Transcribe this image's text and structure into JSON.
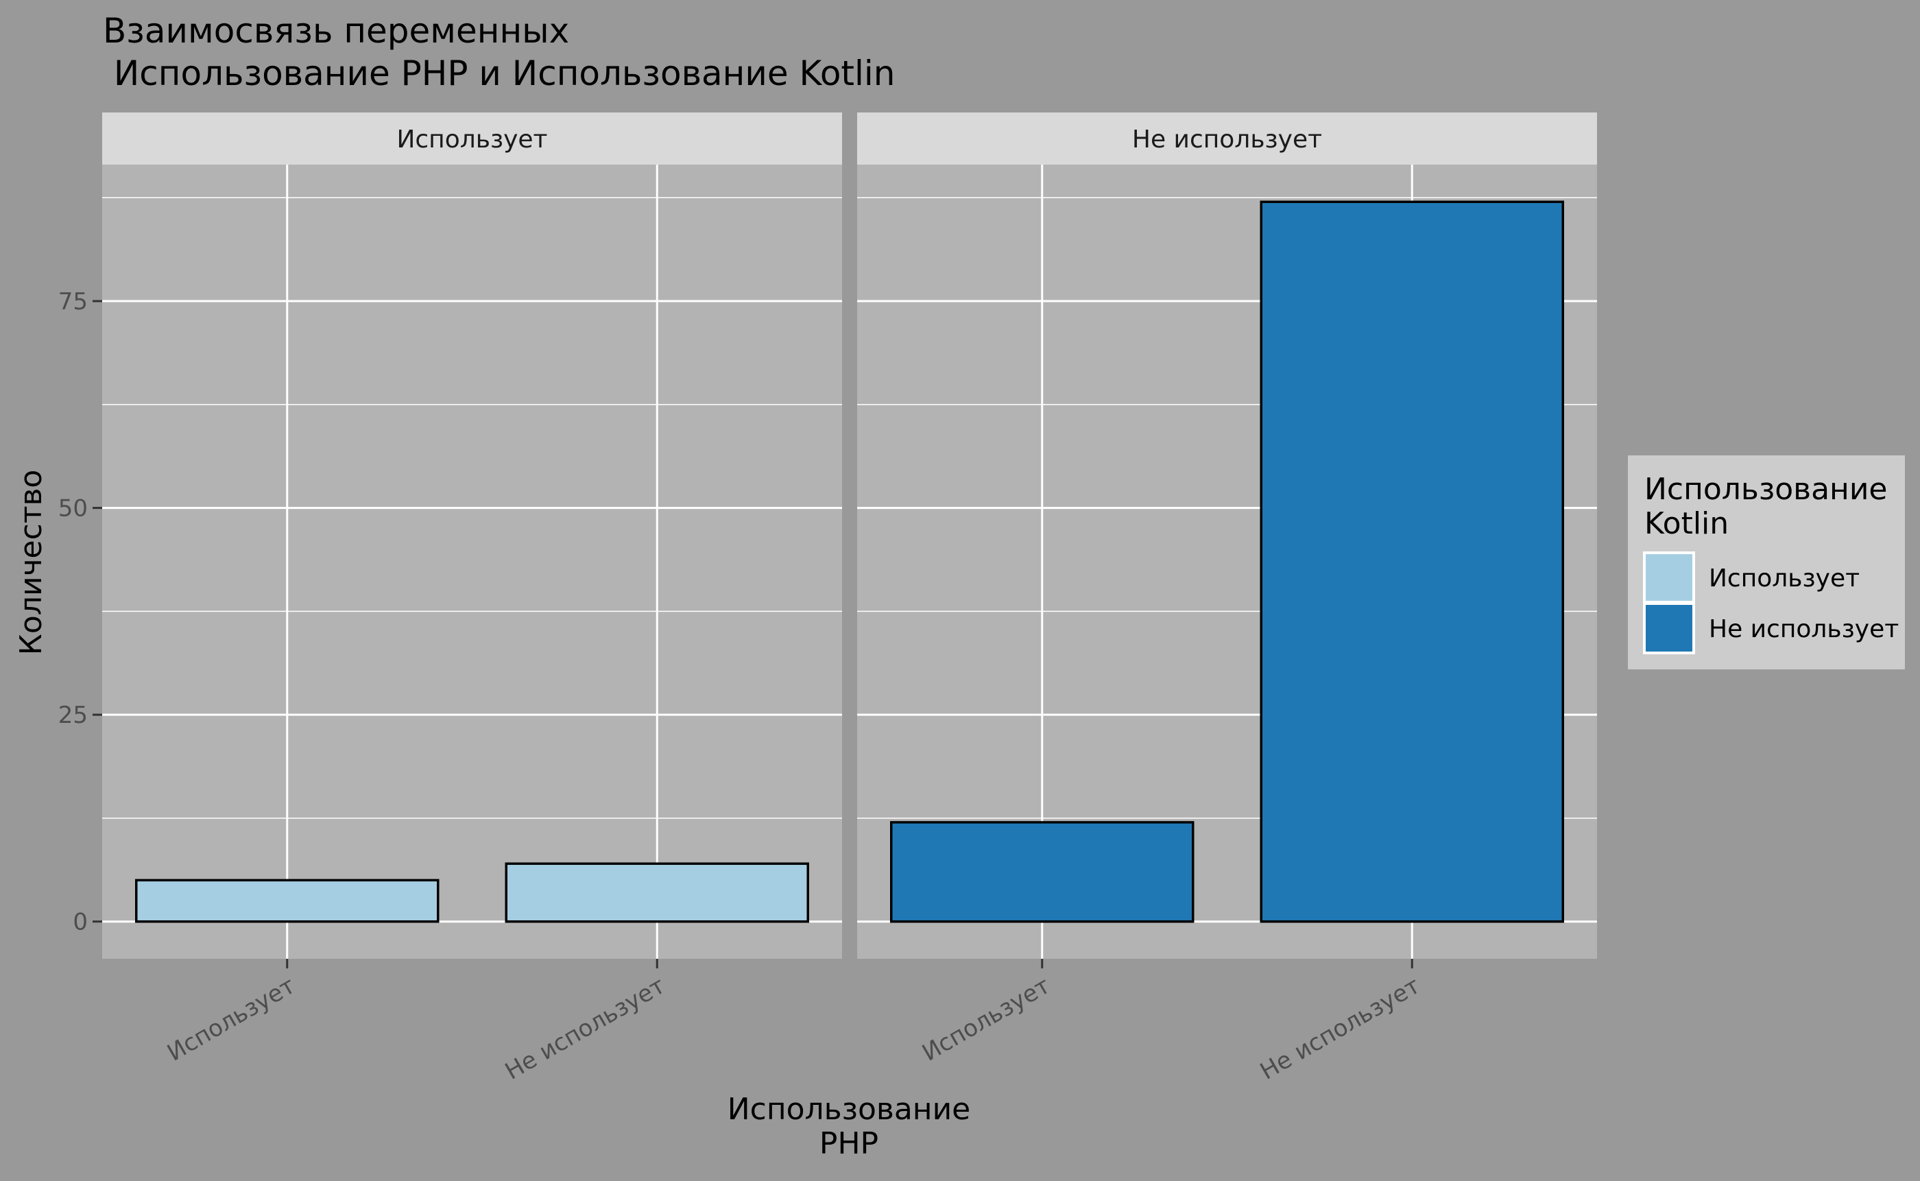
{
  "title_line1": "Взаимосвязь переменных",
  "title_line2": " Использование PHP и Использование Kotlin",
  "colors": {
    "background": "#999999",
    "panel": "#b3b3b3",
    "strip": "#d9d9d9",
    "grid": "#ffffff",
    "bar_outline": "#000000",
    "legend_bg": "#cccccc"
  },
  "chart_data": {
    "type": "bar",
    "facet_variable": "Использование Kotlin",
    "facets": [
      {
        "label": "Использует",
        "color": "#a6cee3",
        "categories": [
          "Использует",
          "Не использует"
        ],
        "values": [
          5,
          7
        ]
      },
      {
        "label": "Не использует",
        "color": "#1f78b4",
        "categories": [
          "Использует",
          "Не использует"
        ],
        "values": [
          12,
          87
        ]
      }
    ],
    "xlabel_line1": "Использование",
    "xlabel_line2": "PHP",
    "ylabel": "Количество",
    "ylim": [
      -4.5,
      91.5
    ],
    "yticks": [
      0,
      25,
      50,
      75
    ],
    "ytick_labels": [
      "0",
      "25",
      "50",
      "75"
    ],
    "grid": true,
    "legend": {
      "position": "right",
      "title_line1": "Использование",
      "title_line2": "Kotlin",
      "items": [
        {
          "label": "Использует",
          "color": "#a6cee3"
        },
        {
          "label": "Не использует",
          "color": "#1f78b4"
        }
      ]
    }
  }
}
